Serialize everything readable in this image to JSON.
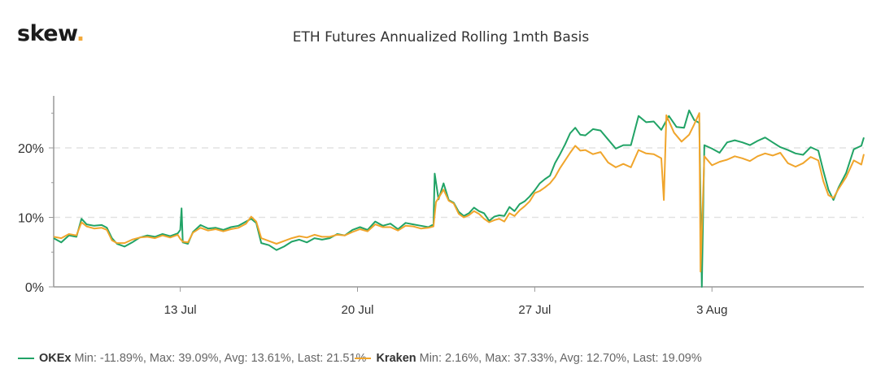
{
  "brand": {
    "logo_text": "skew",
    "logo_dot": "."
  },
  "colors": {
    "okex": "#21a366",
    "kraken": "#f0a52c",
    "grid": "#e2e2e2",
    "axis": "#999999",
    "brand_dot": "#f2a93b"
  },
  "legend": [
    {
      "name": "OKEx",
      "stats": "Min: -11.89%, Max: 39.09%, Avg: 13.61%, Last: 21.51%",
      "color": "#21a366"
    },
    {
      "name": "Kraken",
      "stats": "Min: 2.16%, Max: 37.33%, Avg: 12.70%, Last: 19.09%",
      "color": "#f0a52c"
    }
  ],
  "chart_data": {
    "type": "line",
    "title": "ETH Futures Annualized Rolling 1mth Basis",
    "xlabel": "",
    "ylabel": "",
    "ylim": [
      0,
      27.5
    ],
    "yticks": [
      0,
      10,
      20
    ],
    "ytick_labels": [
      "0%",
      "10%",
      "20%"
    ],
    "xticks_day": [
      13,
      20,
      27,
      34
    ],
    "xtick_labels": [
      "13 Jul",
      "20 Jul",
      "27 Jul",
      "3 Aug"
    ],
    "x_unit": "day of July 2020 (34 = 3 Aug)",
    "xlim": [
      8,
      40
    ],
    "grid": "horizontal dashed at 10% and 20%",
    "legend_position": "bottom",
    "series": [
      {
        "name": "OKEx",
        "color": "#21a366",
        "min": -11.89,
        "max": 39.09,
        "avg": 13.61,
        "last": 21.51,
        "points": [
          [
            8.0,
            7.0
          ],
          [
            8.3,
            6.4
          ],
          [
            8.6,
            7.4
          ],
          [
            8.9,
            7.2
          ],
          [
            9.1,
            9.8
          ],
          [
            9.3,
            9.0
          ],
          [
            9.6,
            8.8
          ],
          [
            9.9,
            8.9
          ],
          [
            10.1,
            8.5
          ],
          [
            10.3,
            7.0
          ],
          [
            10.5,
            6.2
          ],
          [
            10.8,
            5.8
          ],
          [
            11.1,
            6.4
          ],
          [
            11.4,
            7.1
          ],
          [
            11.7,
            7.4
          ],
          [
            12.0,
            7.2
          ],
          [
            12.3,
            7.6
          ],
          [
            12.6,
            7.3
          ],
          [
            12.9,
            7.7
          ],
          [
            13.0,
            8.2
          ],
          [
            13.05,
            11.3
          ],
          [
            13.1,
            6.4
          ],
          [
            13.3,
            6.2
          ],
          [
            13.5,
            7.9
          ],
          [
            13.8,
            8.9
          ],
          [
            14.1,
            8.4
          ],
          [
            14.4,
            8.5
          ],
          [
            14.7,
            8.2
          ],
          [
            15.0,
            8.6
          ],
          [
            15.3,
            8.8
          ],
          [
            15.6,
            9.4
          ],
          [
            15.8,
            9.8
          ],
          [
            16.0,
            9.2
          ],
          [
            16.2,
            6.3
          ],
          [
            16.5,
            6.0
          ],
          [
            16.8,
            5.3
          ],
          [
            17.1,
            5.8
          ],
          [
            17.4,
            6.5
          ],
          [
            17.7,
            6.8
          ],
          [
            18.0,
            6.4
          ],
          [
            18.3,
            7.0
          ],
          [
            18.6,
            6.8
          ],
          [
            18.9,
            7.0
          ],
          [
            19.2,
            7.6
          ],
          [
            19.5,
            7.4
          ],
          [
            19.8,
            8.2
          ],
          [
            20.1,
            8.6
          ],
          [
            20.4,
            8.2
          ],
          [
            20.7,
            9.4
          ],
          [
            21.0,
            8.8
          ],
          [
            21.3,
            9.1
          ],
          [
            21.6,
            8.3
          ],
          [
            21.9,
            9.2
          ],
          [
            22.2,
            9.0
          ],
          [
            22.5,
            8.8
          ],
          [
            22.8,
            8.6
          ],
          [
            23.0,
            9.0
          ],
          [
            23.05,
            16.3
          ],
          [
            23.2,
            12.6
          ],
          [
            23.4,
            14.9
          ],
          [
            23.6,
            12.5
          ],
          [
            23.8,
            12.1
          ],
          [
            24.0,
            10.8
          ],
          [
            24.2,
            10.2
          ],
          [
            24.4,
            10.6
          ],
          [
            24.6,
            11.4
          ],
          [
            24.8,
            10.9
          ],
          [
            25.0,
            10.6
          ],
          [
            25.2,
            9.5
          ],
          [
            25.4,
            10.1
          ],
          [
            25.6,
            10.3
          ],
          [
            25.8,
            10.2
          ],
          [
            26.0,
            11.5
          ],
          [
            26.2,
            10.9
          ],
          [
            26.4,
            11.9
          ],
          [
            26.6,
            12.3
          ],
          [
            26.8,
            13.0
          ],
          [
            27.0,
            13.9
          ],
          [
            27.2,
            14.9
          ],
          [
            27.4,
            15.5
          ],
          [
            27.6,
            16.0
          ],
          [
            27.8,
            17.8
          ],
          [
            28.0,
            19.1
          ],
          [
            28.2,
            20.5
          ],
          [
            28.4,
            22.1
          ],
          [
            28.6,
            22.9
          ],
          [
            28.8,
            21.9
          ],
          [
            29.0,
            21.8
          ],
          [
            29.3,
            22.7
          ],
          [
            29.6,
            22.5
          ],
          [
            29.9,
            21.2
          ],
          [
            30.2,
            19.9
          ],
          [
            30.5,
            20.4
          ],
          [
            30.8,
            20.4
          ],
          [
            31.1,
            24.6
          ],
          [
            31.4,
            23.7
          ],
          [
            31.7,
            23.8
          ],
          [
            32.0,
            22.6
          ],
          [
            32.3,
            24.6
          ],
          [
            32.6,
            23.0
          ],
          [
            32.9,
            22.9
          ],
          [
            33.1,
            25.4
          ],
          [
            33.3,
            24.0
          ],
          [
            33.5,
            23.6
          ],
          [
            33.6,
            0.0
          ],
          [
            33.7,
            20.4
          ],
          [
            34.0,
            19.9
          ],
          [
            34.3,
            19.3
          ],
          [
            34.6,
            20.8
          ],
          [
            34.9,
            21.1
          ],
          [
            35.2,
            20.8
          ],
          [
            35.5,
            20.4
          ],
          [
            35.8,
            21.0
          ],
          [
            36.1,
            21.5
          ],
          [
            36.4,
            20.8
          ],
          [
            36.7,
            20.1
          ],
          [
            37.0,
            19.7
          ],
          [
            37.3,
            19.2
          ],
          [
            37.6,
            19.0
          ],
          [
            37.9,
            20.1
          ],
          [
            38.2,
            19.6
          ],
          [
            38.4,
            16.7
          ],
          [
            38.6,
            14.0
          ],
          [
            38.8,
            12.5
          ],
          [
            39.0,
            14.3
          ],
          [
            39.3,
            16.4
          ],
          [
            39.6,
            19.8
          ],
          [
            39.9,
            20.3
          ],
          [
            40.0,
            21.5
          ]
        ]
      },
      {
        "name": "Kraken",
        "color": "#f0a52c",
        "min": 2.16,
        "max": 37.33,
        "avg": 12.7,
        "last": 19.09,
        "points": [
          [
            8.0,
            7.2
          ],
          [
            8.3,
            7.0
          ],
          [
            8.6,
            7.6
          ],
          [
            8.9,
            7.4
          ],
          [
            9.1,
            9.3
          ],
          [
            9.3,
            8.7
          ],
          [
            9.6,
            8.4
          ],
          [
            9.9,
            8.5
          ],
          [
            10.1,
            8.2
          ],
          [
            10.3,
            6.7
          ],
          [
            10.5,
            6.3
          ],
          [
            10.8,
            6.3
          ],
          [
            11.1,
            6.8
          ],
          [
            11.4,
            7.1
          ],
          [
            11.7,
            7.2
          ],
          [
            12.0,
            7.0
          ],
          [
            12.3,
            7.4
          ],
          [
            12.6,
            7.1
          ],
          [
            12.9,
            7.5
          ],
          [
            13.0,
            6.9
          ],
          [
            13.1,
            6.5
          ],
          [
            13.3,
            6.4
          ],
          [
            13.5,
            7.8
          ],
          [
            13.8,
            8.5
          ],
          [
            14.1,
            8.1
          ],
          [
            14.4,
            8.3
          ],
          [
            14.7,
            8.0
          ],
          [
            15.0,
            8.3
          ],
          [
            15.3,
            8.5
          ],
          [
            15.6,
            9.1
          ],
          [
            15.8,
            10.1
          ],
          [
            16.0,
            9.4
          ],
          [
            16.2,
            7.0
          ],
          [
            16.5,
            6.6
          ],
          [
            16.8,
            6.2
          ],
          [
            17.1,
            6.6
          ],
          [
            17.4,
            7.0
          ],
          [
            17.7,
            7.3
          ],
          [
            18.0,
            7.1
          ],
          [
            18.3,
            7.5
          ],
          [
            18.6,
            7.2
          ],
          [
            18.9,
            7.2
          ],
          [
            19.2,
            7.5
          ],
          [
            19.5,
            7.4
          ],
          [
            19.8,
            7.9
          ],
          [
            20.1,
            8.3
          ],
          [
            20.4,
            8.0
          ],
          [
            20.7,
            9.0
          ],
          [
            21.0,
            8.6
          ],
          [
            21.3,
            8.6
          ],
          [
            21.6,
            8.1
          ],
          [
            21.9,
            8.8
          ],
          [
            22.2,
            8.7
          ],
          [
            22.5,
            8.4
          ],
          [
            22.8,
            8.5
          ],
          [
            23.0,
            8.7
          ],
          [
            23.1,
            12.2
          ],
          [
            23.4,
            14.0
          ],
          [
            23.6,
            12.4
          ],
          [
            23.8,
            12.0
          ],
          [
            24.0,
            10.5
          ],
          [
            24.2,
            10.0
          ],
          [
            24.4,
            10.3
          ],
          [
            24.6,
            10.9
          ],
          [
            24.8,
            10.5
          ],
          [
            25.0,
            9.8
          ],
          [
            25.2,
            9.3
          ],
          [
            25.4,
            9.6
          ],
          [
            25.6,
            9.8
          ],
          [
            25.8,
            9.4
          ],
          [
            26.0,
            10.6
          ],
          [
            26.2,
            10.2
          ],
          [
            26.4,
            11.0
          ],
          [
            26.6,
            11.6
          ],
          [
            26.8,
            12.3
          ],
          [
            27.0,
            13.5
          ],
          [
            27.2,
            13.8
          ],
          [
            27.4,
            14.3
          ],
          [
            27.6,
            14.9
          ],
          [
            27.8,
            15.8
          ],
          [
            28.0,
            17.1
          ],
          [
            28.2,
            18.2
          ],
          [
            28.4,
            19.3
          ],
          [
            28.6,
            20.3
          ],
          [
            28.8,
            19.6
          ],
          [
            29.0,
            19.7
          ],
          [
            29.3,
            19.1
          ],
          [
            29.6,
            19.4
          ],
          [
            29.9,
            17.9
          ],
          [
            30.2,
            17.2
          ],
          [
            30.5,
            17.7
          ],
          [
            30.8,
            17.2
          ],
          [
            31.1,
            19.7
          ],
          [
            31.4,
            19.2
          ],
          [
            31.7,
            19.1
          ],
          [
            32.0,
            18.5
          ],
          [
            32.1,
            12.5
          ],
          [
            32.2,
            24.7
          ],
          [
            32.5,
            22.2
          ],
          [
            32.8,
            20.9
          ],
          [
            33.1,
            21.9
          ],
          [
            33.3,
            23.4
          ],
          [
            33.5,
            25.0
          ],
          [
            33.55,
            2.2
          ],
          [
            33.7,
            18.8
          ],
          [
            34.0,
            17.5
          ],
          [
            34.3,
            18.0
          ],
          [
            34.6,
            18.3
          ],
          [
            34.9,
            18.8
          ],
          [
            35.2,
            18.5
          ],
          [
            35.5,
            18.1
          ],
          [
            35.8,
            18.8
          ],
          [
            36.1,
            19.2
          ],
          [
            36.4,
            18.9
          ],
          [
            36.7,
            19.3
          ],
          [
            37.0,
            17.8
          ],
          [
            37.3,
            17.3
          ],
          [
            37.6,
            17.8
          ],
          [
            37.9,
            18.7
          ],
          [
            38.2,
            18.2
          ],
          [
            38.4,
            15.2
          ],
          [
            38.6,
            13.2
          ],
          [
            38.8,
            12.8
          ],
          [
            39.0,
            14.1
          ],
          [
            39.3,
            15.8
          ],
          [
            39.6,
            18.2
          ],
          [
            39.9,
            17.6
          ],
          [
            40.0,
            19.1
          ]
        ]
      }
    ]
  }
}
